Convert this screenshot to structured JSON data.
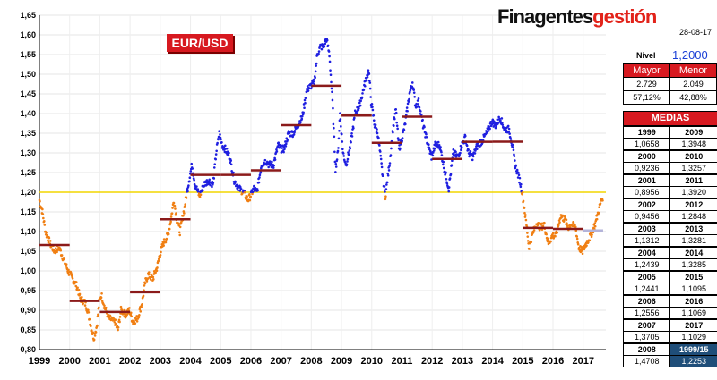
{
  "brand": {
    "part1": "Finagentes",
    "part2": "gestión"
  },
  "date": "28-08-17",
  "badge": "EUR/USD",
  "nivel": {
    "label": "Nivel",
    "value": "1,2000"
  },
  "stats": {
    "headers": [
      "Mayor",
      "Menor"
    ],
    "counts": [
      "2.729",
      "2.049"
    ],
    "percents": [
      "57,12%",
      "42,88%"
    ]
  },
  "medias": {
    "title": "MEDIAS",
    "rows": [
      {
        "y1": "1999",
        "v1": "1,0658",
        "y2": "2009",
        "v2": "1,3948"
      },
      {
        "y1": "2000",
        "v1": "0,9236",
        "y2": "2010",
        "v2": "1,3257"
      },
      {
        "y1": "2001",
        "v1": "0,8956",
        "y2": "2011",
        "v2": "1,3920"
      },
      {
        "y1": "2002",
        "v1": "0,9456",
        "y2": "2012",
        "v2": "1,2848"
      },
      {
        "y1": "2003",
        "v1": "1,1312",
        "y2": "2013",
        "v2": "1,3281"
      },
      {
        "y1": "2004",
        "v1": "1,2439",
        "y2": "2014",
        "v2": "1,3285"
      },
      {
        "y1": "2005",
        "v1": "1,2441",
        "y2": "2015",
        "v2": "1,1095"
      },
      {
        "y1": "2006",
        "v1": "1,2556",
        "y2": "2016",
        "v2": "1,1069"
      },
      {
        "y1": "2007",
        "v1": "1,3705",
        "y2": "2017",
        "v2": "1,1029"
      },
      {
        "y1": "2008",
        "v1": "1,4708",
        "y2": "1999/15",
        "v2": "1,2253"
      }
    ]
  },
  "chart_data": {
    "type": "scatter",
    "title": "",
    "ylim": [
      0.8,
      1.65
    ],
    "xlim": [
      1999,
      2017.75
    ],
    "y_ticks": [
      "0,80",
      "0,85",
      "0,90",
      "0,95",
      "1,00",
      "1,05",
      "1,10",
      "1,15",
      "1,20",
      "1,25",
      "1,30",
      "1,35",
      "1,40",
      "1,45",
      "1,50",
      "1,55",
      "1,60",
      "1,65"
    ],
    "x_ticks": [
      "1999",
      "2000",
      "2001",
      "2002",
      "2003",
      "2004",
      "2005",
      "2006",
      "2007",
      "2008",
      "2009",
      "2010",
      "2011",
      "2012",
      "2013",
      "2014",
      "2015",
      "2016",
      "2017"
    ],
    "reference_line": {
      "value": 1.2,
      "color": "#f2d600"
    },
    "colors": {
      "above": "#1f1fe0",
      "below": "#f07f13",
      "annual_mean": "#8b1a1a",
      "mean_2017": "#b3b3d9"
    },
    "price_path": [
      [
        1999.0,
        1.18
      ],
      [
        1999.1,
        1.15
      ],
      [
        1999.2,
        1.1
      ],
      [
        1999.35,
        1.07
      ],
      [
        1999.5,
        1.05
      ],
      [
        1999.65,
        1.06
      ],
      [
        1999.8,
        1.03
      ],
      [
        1999.95,
        1.0
      ],
      [
        2000.1,
        0.98
      ],
      [
        2000.25,
        0.96
      ],
      [
        2000.35,
        0.93
      ],
      [
        2000.5,
        0.92
      ],
      [
        2000.6,
        0.9
      ],
      [
        2000.7,
        0.86
      ],
      [
        2000.8,
        0.83
      ],
      [
        2000.9,
        0.86
      ],
      [
        2000.98,
        0.92
      ],
      [
        2001.05,
        0.94
      ],
      [
        2001.15,
        0.91
      ],
      [
        2001.3,
        0.88
      ],
      [
        2001.5,
        0.87
      ],
      [
        2001.6,
        0.85
      ],
      [
        2001.7,
        0.9
      ],
      [
        2001.85,
        0.89
      ],
      [
        2001.98,
        0.9
      ],
      [
        2002.1,
        0.87
      ],
      [
        2002.25,
        0.88
      ],
      [
        2002.4,
        0.92
      ],
      [
        2002.5,
        0.97
      ],
      [
        2002.6,
        0.99
      ],
      [
        2002.75,
        0.98
      ],
      [
        2002.9,
        1.01
      ],
      [
        2002.98,
        1.04
      ],
      [
        2003.1,
        1.07
      ],
      [
        2003.25,
        1.09
      ],
      [
        2003.35,
        1.13
      ],
      [
        2003.45,
        1.18
      ],
      [
        2003.55,
        1.13
      ],
      [
        2003.65,
        1.1
      ],
      [
        2003.8,
        1.16
      ],
      [
        2003.95,
        1.23
      ],
      [
        2004.05,
        1.27
      ],
      [
        2004.15,
        1.22
      ],
      [
        2004.3,
        1.19
      ],
      [
        2004.45,
        1.22
      ],
      [
        2004.6,
        1.23
      ],
      [
        2004.75,
        1.22
      ],
      [
        2004.85,
        1.3
      ],
      [
        2004.95,
        1.35
      ],
      [
        2005.05,
        1.32
      ],
      [
        2005.15,
        1.31
      ],
      [
        2005.3,
        1.29
      ],
      [
        2005.45,
        1.23
      ],
      [
        2005.6,
        1.21
      ],
      [
        2005.75,
        1.2
      ],
      [
        2005.9,
        1.18
      ],
      [
        2005.98,
        1.19
      ],
      [
        2006.1,
        1.21
      ],
      [
        2006.2,
        1.2
      ],
      [
        2006.35,
        1.27
      ],
      [
        2006.5,
        1.28
      ],
      [
        2006.6,
        1.27
      ],
      [
        2006.75,
        1.27
      ],
      [
        2006.9,
        1.32
      ],
      [
        2006.98,
        1.31
      ],
      [
        2007.1,
        1.31
      ],
      [
        2007.25,
        1.35
      ],
      [
        2007.4,
        1.35
      ],
      [
        2007.55,
        1.37
      ],
      [
        2007.7,
        1.39
      ],
      [
        2007.85,
        1.46
      ],
      [
        2007.98,
        1.47
      ],
      [
        2008.1,
        1.48
      ],
      [
        2008.2,
        1.55
      ],
      [
        2008.3,
        1.57
      ],
      [
        2008.4,
        1.57
      ],
      [
        2008.5,
        1.59
      ],
      [
        2008.6,
        1.55
      ],
      [
        2008.7,
        1.43
      ],
      [
        2008.8,
        1.26
      ],
      [
        2008.88,
        1.3
      ],
      [
        2008.95,
        1.4
      ],
      [
        2009.05,
        1.3
      ],
      [
        2009.15,
        1.27
      ],
      [
        2009.3,
        1.32
      ],
      [
        2009.45,
        1.4
      ],
      [
        2009.6,
        1.42
      ],
      [
        2009.75,
        1.47
      ],
      [
        2009.9,
        1.51
      ],
      [
        2009.98,
        1.43
      ],
      [
        2010.1,
        1.37
      ],
      [
        2010.2,
        1.35
      ],
      [
        2010.35,
        1.25
      ],
      [
        2010.45,
        1.19
      ],
      [
        2010.6,
        1.28
      ],
      [
        2010.7,
        1.36
      ],
      [
        2010.8,
        1.41
      ],
      [
        2010.9,
        1.31
      ],
      [
        2010.98,
        1.33
      ],
      [
        2011.1,
        1.37
      ],
      [
        2011.25,
        1.45
      ],
      [
        2011.35,
        1.48
      ],
      [
        2011.45,
        1.42
      ],
      [
        2011.55,
        1.43
      ],
      [
        2011.7,
        1.37
      ],
      [
        2011.8,
        1.34
      ],
      [
        2011.9,
        1.31
      ],
      [
        2011.98,
        1.29
      ],
      [
        2012.1,
        1.32
      ],
      [
        2012.25,
        1.32
      ],
      [
        2012.4,
        1.26
      ],
      [
        2012.55,
        1.21
      ],
      [
        2012.7,
        1.3
      ],
      [
        2012.85,
        1.29
      ],
      [
        2012.98,
        1.32
      ],
      [
        2013.1,
        1.34
      ],
      [
        2013.2,
        1.3
      ],
      [
        2013.35,
        1.29
      ],
      [
        2013.5,
        1.32
      ],
      [
        2013.65,
        1.33
      ],
      [
        2013.8,
        1.35
      ],
      [
        2013.98,
        1.38
      ],
      [
        2014.1,
        1.37
      ],
      [
        2014.25,
        1.39
      ],
      [
        2014.4,
        1.36
      ],
      [
        2014.55,
        1.36
      ],
      [
        2014.65,
        1.32
      ],
      [
        2014.75,
        1.27
      ],
      [
        2014.9,
        1.23
      ],
      [
        2014.98,
        1.2
      ],
      [
        2015.05,
        1.16
      ],
      [
        2015.15,
        1.1
      ],
      [
        2015.2,
        1.06
      ],
      [
        2015.35,
        1.1
      ],
      [
        2015.45,
        1.12
      ],
      [
        2015.6,
        1.11
      ],
      [
        2015.7,
        1.12
      ],
      [
        2015.85,
        1.07
      ],
      [
        2015.98,
        1.09
      ],
      [
        2016.1,
        1.09
      ],
      [
        2016.25,
        1.14
      ],
      [
        2016.4,
        1.13
      ],
      [
        2016.5,
        1.11
      ],
      [
        2016.6,
        1.12
      ],
      [
        2016.75,
        1.11
      ],
      [
        2016.85,
        1.06
      ],
      [
        2016.98,
        1.05
      ],
      [
        2017.1,
        1.07
      ],
      [
        2017.25,
        1.09
      ],
      [
        2017.4,
        1.12
      ],
      [
        2017.5,
        1.15
      ],
      [
        2017.6,
        1.18
      ],
      [
        2017.66,
        1.19
      ]
    ],
    "annual_means": [
      {
        "x0": 1999.0,
        "x1": 2000.0,
        "y": 1.0658
      },
      {
        "x0": 2000.0,
        "x1": 2001.0,
        "y": 0.9236
      },
      {
        "x0": 2001.0,
        "x1": 2002.0,
        "y": 0.8956
      },
      {
        "x0": 2002.0,
        "x1": 2003.0,
        "y": 0.9456
      },
      {
        "x0": 2003.0,
        "x1": 2004.0,
        "y": 1.1312
      },
      {
        "x0": 2004.0,
        "x1": 2005.0,
        "y": 1.2439
      },
      {
        "x0": 2005.0,
        "x1": 2006.0,
        "y": 1.2441
      },
      {
        "x0": 2006.0,
        "x1": 2007.0,
        "y": 1.2556
      },
      {
        "x0": 2007.0,
        "x1": 2008.0,
        "y": 1.3705
      },
      {
        "x0": 2008.0,
        "x1": 2009.0,
        "y": 1.4708
      },
      {
        "x0": 2009.0,
        "x1": 2010.0,
        "y": 1.3948
      },
      {
        "x0": 2010.0,
        "x1": 2011.0,
        "y": 1.3257
      },
      {
        "x0": 2011.0,
        "x1": 2012.0,
        "y": 1.392
      },
      {
        "x0": 2012.0,
        "x1": 2013.0,
        "y": 1.2848
      },
      {
        "x0": 2013.0,
        "x1": 2014.0,
        "y": 1.3281
      },
      {
        "x0": 2014.0,
        "x1": 2015.0,
        "y": 1.3285
      },
      {
        "x0": 2015.0,
        "x1": 2016.0,
        "y": 1.1095
      },
      {
        "x0": 2016.0,
        "x1": 2017.0,
        "y": 1.1069
      },
      {
        "x0": 2017.0,
        "x1": 2017.66,
        "y": 1.1029
      }
    ]
  }
}
